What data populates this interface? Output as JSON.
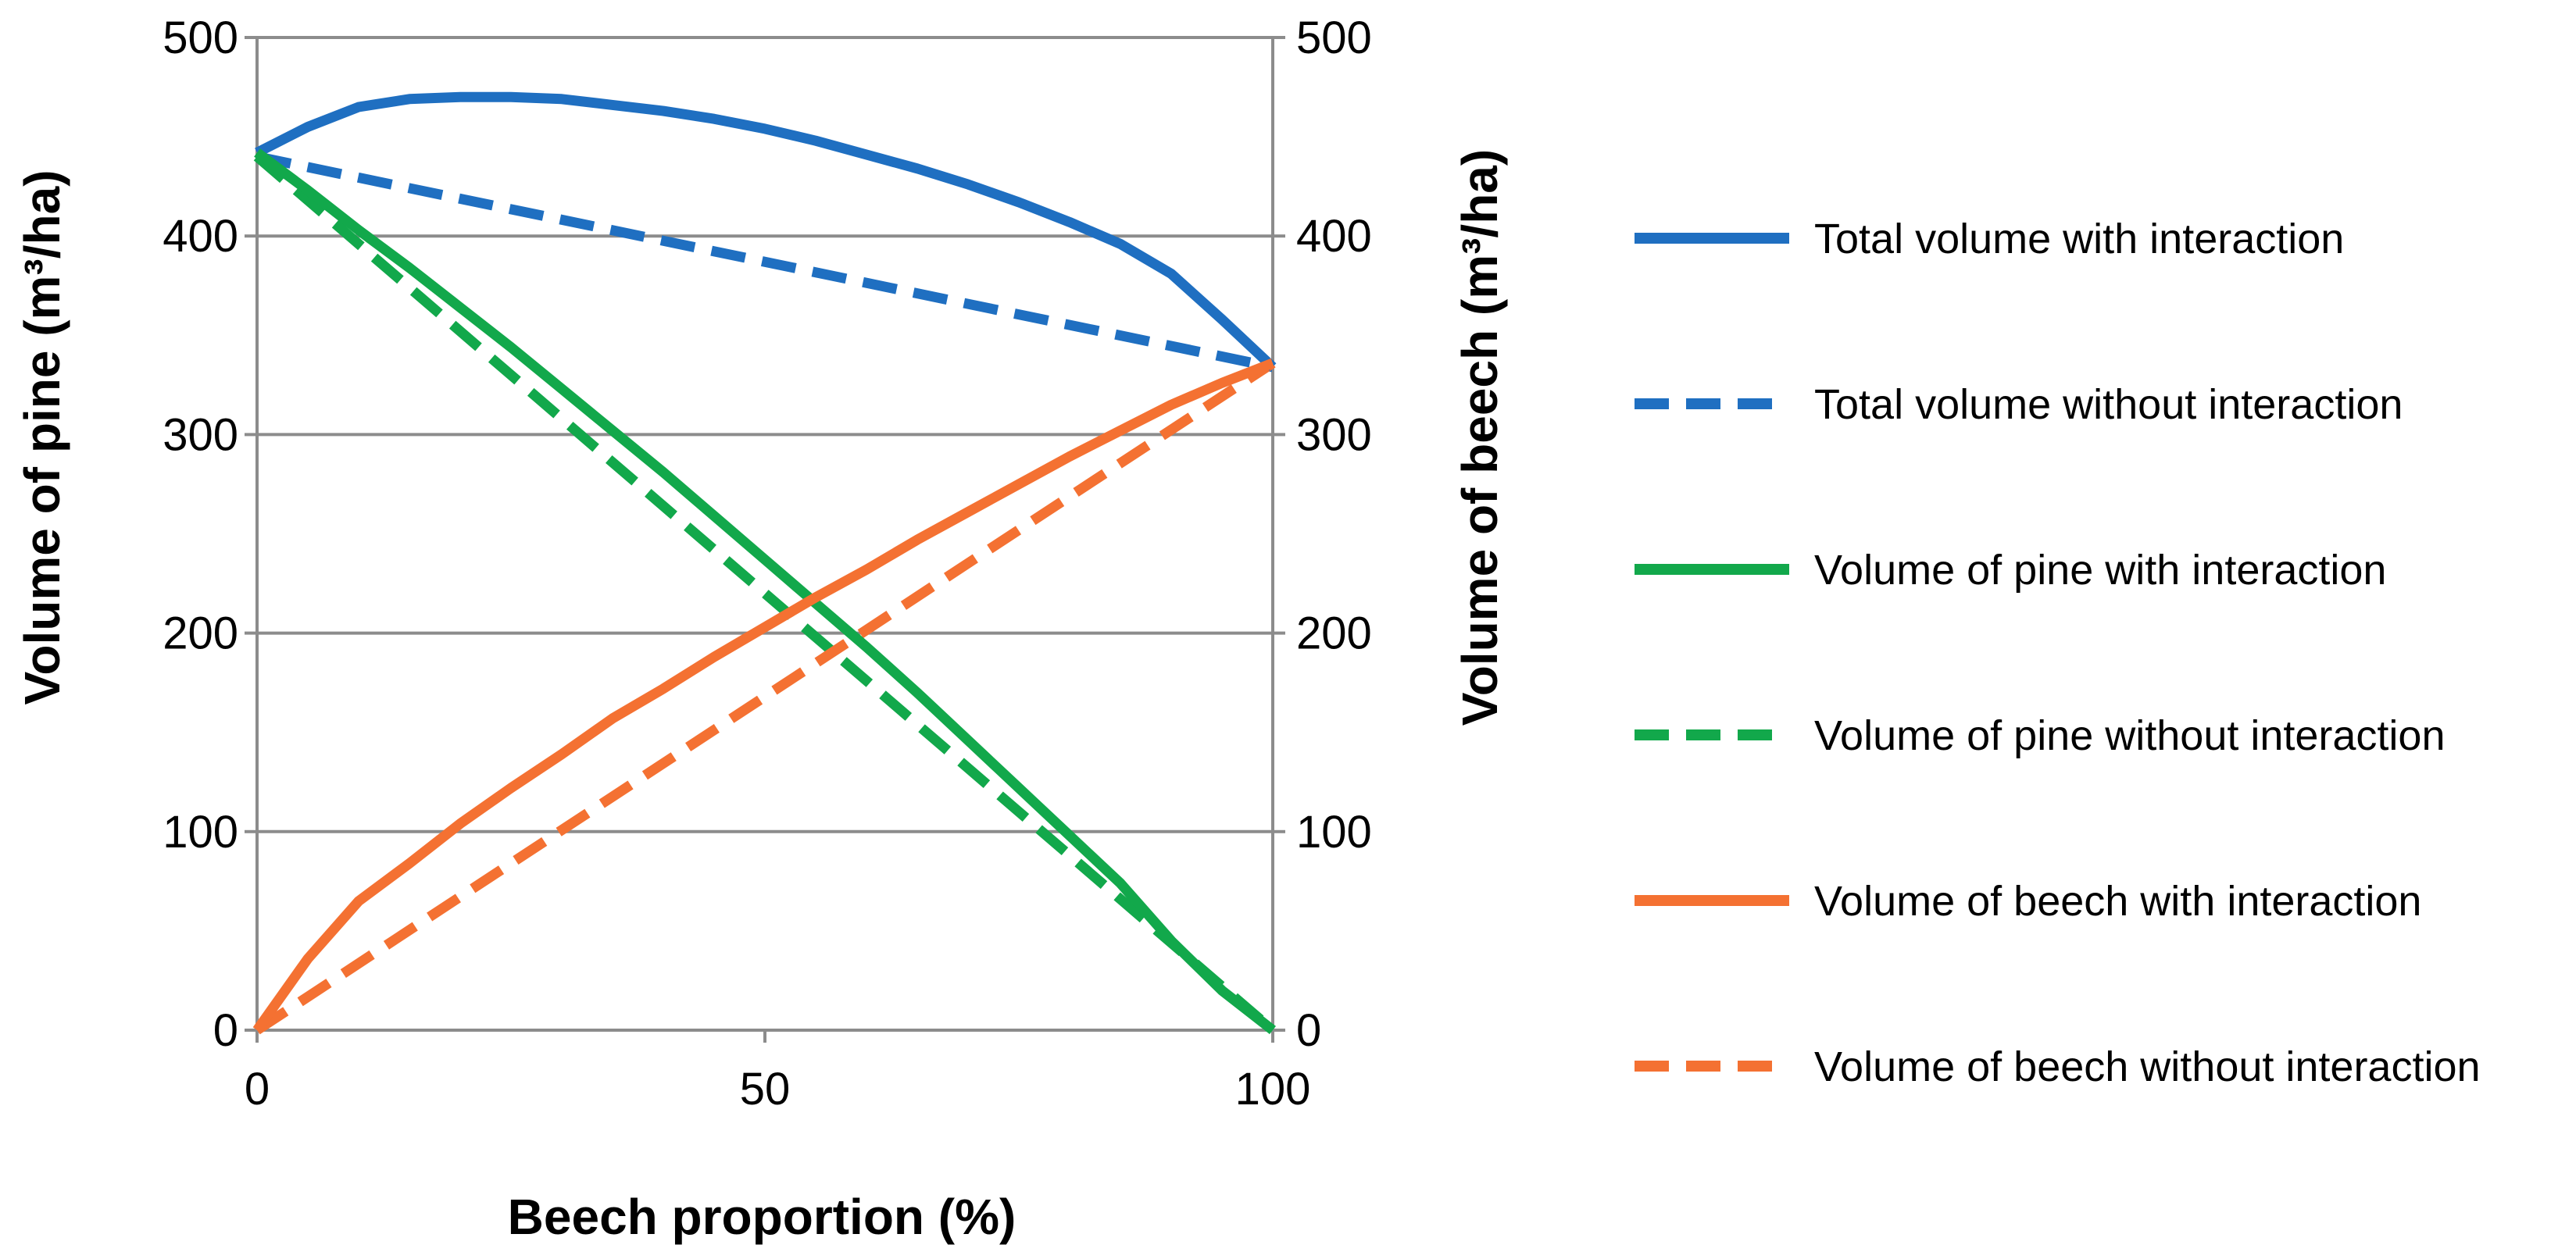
{
  "chart_data": {
    "type": "line",
    "title": "",
    "xlabel": "Beech proportion (%)",
    "ylabel_left": "Volume of pine (m³/ha)",
    "ylabel_right": "Volume of beech (m³/ha)",
    "xlim": [
      0,
      100
    ],
    "ylim": [
      0,
      500
    ],
    "x_ticks": [
      0,
      50,
      100
    ],
    "x_tick_labels": [
      "0",
      "50",
      "100"
    ],
    "y_ticks": [
      0,
      100,
      200,
      300,
      400,
      500
    ],
    "y_tick_labels": [
      "0",
      "100",
      "200",
      "300",
      "400",
      "500"
    ],
    "grid": true,
    "legend_position": "right",
    "series": [
      {
        "name": "Total volume with interaction",
        "color": "#1f6fc1",
        "dash": "solid",
        "x": [
          0,
          5,
          10,
          15,
          20,
          25,
          30,
          35,
          40,
          45,
          50,
          55,
          60,
          65,
          70,
          75,
          80,
          85,
          90,
          95,
          100
        ],
        "y": [
          442,
          455,
          465,
          469,
          470,
          470,
          469,
          466,
          463,
          459,
          454,
          448,
          441,
          434,
          426,
          417,
          407,
          396,
          381,
          358,
          334
        ]
      },
      {
        "name": "Total volume without interaction",
        "color": "#1f6fc1",
        "dash": "dashed",
        "x": [
          0,
          100
        ],
        "y": [
          440,
          334
        ]
      },
      {
        "name": "Volume of pine with interaction",
        "color": "#12a84b",
        "dash": "solid",
        "x": [
          0,
          5,
          10,
          15,
          20,
          25,
          30,
          35,
          40,
          45,
          50,
          55,
          60,
          65,
          70,
          75,
          80,
          85,
          90,
          95,
          100
        ],
        "y": [
          442,
          423,
          403,
          384,
          364,
          344,
          323,
          302,
          281,
          259,
          237,
          215,
          193,
          170,
          146,
          122,
          98,
          74,
          45,
          20,
          0
        ]
      },
      {
        "name": "Volume of pine without interaction",
        "color": "#12a84b",
        "dash": "dashed",
        "x": [
          0,
          100
        ],
        "y": [
          440,
          0
        ]
      },
      {
        "name": "Volume of beech with interaction",
        "color": "#f47132",
        "dash": "solid",
        "x": [
          0,
          5,
          10,
          15,
          20,
          25,
          30,
          35,
          40,
          45,
          50,
          55,
          60,
          65,
          70,
          75,
          80,
          85,
          90,
          95,
          100
        ],
        "y": [
          0,
          36,
          65,
          84,
          104,
          122,
          139,
          157,
          172,
          188,
          203,
          218,
          232,
          247,
          261,
          275,
          289,
          302,
          315,
          326,
          336
        ]
      },
      {
        "name": "Volume of beech without interaction",
        "color": "#f47132",
        "dash": "dashed",
        "x": [
          0,
          100
        ],
        "y": [
          0,
          336
        ]
      }
    ]
  }
}
